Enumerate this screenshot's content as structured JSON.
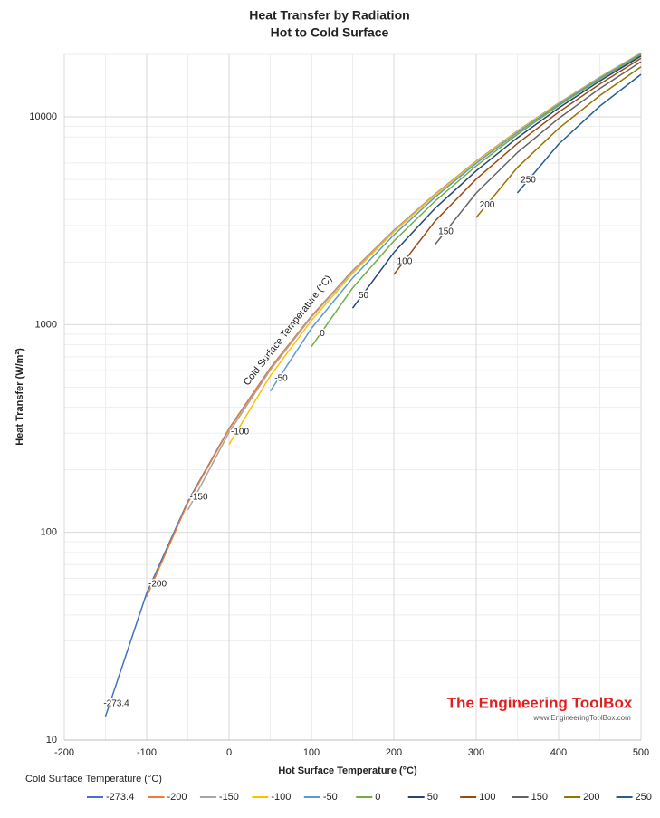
{
  "chart_data": {
    "type": "line",
    "title": "Heat Transfer by Radiation",
    "subtitle": "Hot to Cold Surface",
    "x_label": "Hot Surface Temperature (°C)",
    "y_label": "Heat Transfer (W/m²)",
    "annotation": "Cold Surface Temperature (°C)",
    "legend_title": "Cold Surface Temperature (°C)",
    "watermark": "The Engineering ToolBox",
    "watermark_url": "www.EngineeringToolBox.com",
    "log_y": true,
    "grid": true,
    "legend": "bottom",
    "xlim": [
      -200,
      500
    ],
    "xticks": [
      -200,
      -100,
      0,
      100,
      200,
      300,
      400,
      500
    ],
    "ylim": [
      10,
      20000
    ],
    "yticks": [
      10,
      100,
      1000,
      10000
    ],
    "x": [
      -150,
      -100,
      -50,
      0,
      50,
      100,
      150,
      200,
      250,
      300,
      350,
      400,
      450,
      500
    ],
    "series": [
      {
        "name": "-273.4",
        "color": "#4472c4",
        "values": [
          13,
          51,
          141,
          316,
          618,
          1099,
          1818,
          2842,
          4247,
          6119,
          8550,
          11642,
          15506,
          20260
        ]
      },
      {
        "name": "-200",
        "color": "#ed7d31",
        "values": [
          null,
          49,
          139,
          314,
          617,
          1098,
          1816,
          2840,
          4245,
          6117,
          8548,
          11640,
          15504,
          20258
        ]
      },
      {
        "name": "-150",
        "color": "#a5a5a5",
        "values": [
          null,
          null,
          128,
          303,
          605,
          1086,
          1805,
          2829,
          4234,
          6106,
          8537,
          11629,
          15493,
          20247
        ]
      },
      {
        "name": "-100",
        "color": "#ffc000",
        "values": [
          null,
          null,
          null,
          265,
          567,
          1048,
          1767,
          2791,
          4196,
          6068,
          8499,
          11591,
          15455,
          20209
        ]
      },
      {
        "name": "-50",
        "color": "#5b9bd5",
        "values": [
          null,
          null,
          null,
          null,
          478,
          959,
          1677,
          2701,
          4107,
          5978,
          8409,
          11502,
          15365,
          20119
        ]
      },
      {
        "name": "0",
        "color": "#70ad47",
        "values": [
          null,
          null,
          null,
          null,
          null,
          784,
          1502,
          2526,
          3932,
          5803,
          8234,
          11327,
          15190,
          19944
        ]
      },
      {
        "name": "50",
        "color": "#264478",
        "values": [
          null,
          null,
          null,
          null,
          null,
          null,
          1200,
          2223,
          3629,
          5500,
          7931,
          11024,
          14888,
          19642
        ]
      },
      {
        "name": "100",
        "color": "#9e480e",
        "values": [
          null,
          null,
          null,
          null,
          null,
          null,
          null,
          1742,
          3148,
          5019,
          7450,
          10543,
          14407,
          19161
        ]
      },
      {
        "name": "150",
        "color": "#636363",
        "values": [
          null,
          null,
          null,
          null,
          null,
          null,
          null,
          null,
          2429,
          4301,
          6732,
          9824,
          13688,
          18442
        ]
      },
      {
        "name": "200",
        "color": "#997300",
        "values": [
          null,
          null,
          null,
          null,
          null,
          null,
          null,
          null,
          null,
          3277,
          5708,
          8800,
          12664,
          17418
        ]
      },
      {
        "name": "250",
        "color": "#255e91",
        "values": [
          null,
          null,
          null,
          null,
          null,
          null,
          null,
          null,
          null,
          null,
          4303,
          7395,
          11259,
          16013
        ]
      }
    ]
  }
}
